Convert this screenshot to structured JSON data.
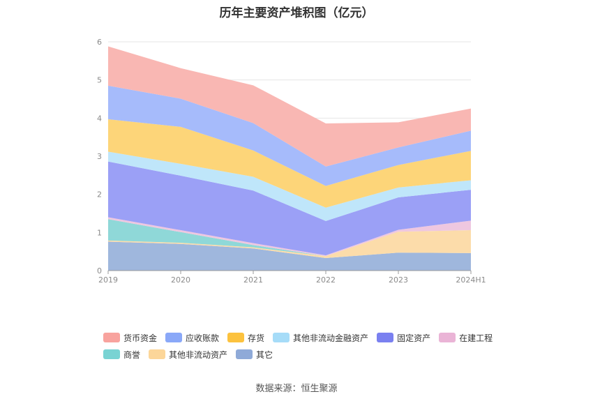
{
  "chart_data": {
    "type": "area",
    "stacked": true,
    "title": "历年主要资产堆积图（亿元）",
    "categories": [
      "2019",
      "2020",
      "2021",
      "2022",
      "2023",
      "2024H1"
    ],
    "ylim": [
      0,
      6
    ],
    "yticks": [
      "0",
      "1",
      "2",
      "3",
      "4",
      "5",
      "6"
    ],
    "grid": true,
    "legend_position": "bottom",
    "series": [
      {
        "name": "其它",
        "color": "#9fb7dd",
        "values": [
          0.76,
          0.7,
          0.58,
          0.33,
          0.47,
          0.46
        ]
      },
      {
        "name": "其他非流动资产",
        "color": "#fcdcaa",
        "values": [
          0.03,
          0.03,
          0.03,
          0.05,
          0.55,
          0.6
        ]
      },
      {
        "name": "商誉",
        "color": "#8fd8d8",
        "values": [
          0.56,
          0.28,
          0.06,
          0.0,
          0.0,
          0.0
        ]
      },
      {
        "name": "在建工程",
        "color": "#eec7e0",
        "values": [
          0.05,
          0.05,
          0.05,
          0.02,
          0.05,
          0.25
        ]
      },
      {
        "name": "固定资产",
        "color": "#9ba0f6",
        "values": [
          1.46,
          1.43,
          1.38,
          0.9,
          0.85,
          0.81
        ]
      },
      {
        "name": "其他非流动金融资产",
        "color": "#bfe6fa",
        "values": [
          0.26,
          0.31,
          0.36,
          0.35,
          0.26,
          0.25
        ]
      },
      {
        "name": "存货",
        "color": "#fdd579",
        "values": [
          0.85,
          0.97,
          0.69,
          0.57,
          0.59,
          0.77
        ]
      },
      {
        "name": "应收账款",
        "color": "#a6bbfb",
        "values": [
          0.88,
          0.74,
          0.72,
          0.51,
          0.46,
          0.53
        ]
      },
      {
        "name": "货币资金",
        "color": "#f9b7b3",
        "values": [
          1.03,
          0.8,
          0.99,
          1.13,
          0.66,
          0.58
        ]
      }
    ]
  },
  "legend": {
    "row1": [
      {
        "label": "货币资金",
        "color": "#f8a39e"
      },
      {
        "label": "应收账款",
        "color": "#8aa8f8"
      },
      {
        "label": "存货",
        "color": "#fcc23e"
      },
      {
        "label": "其他非流动金融资产",
        "color": "#a6dcf8"
      },
      {
        "label": "固定资产",
        "color": "#7a80f0"
      },
      {
        "label": "在建工程",
        "color": "#eab4d6"
      }
    ],
    "row2": [
      {
        "label": "商誉",
        "color": "#79d3d3"
      },
      {
        "label": "其他非流动资产",
        "color": "#fcd699"
      },
      {
        "label": "其它",
        "color": "#8faad8"
      }
    ]
  },
  "footer": {
    "source": "数据来源：恒生聚源"
  }
}
